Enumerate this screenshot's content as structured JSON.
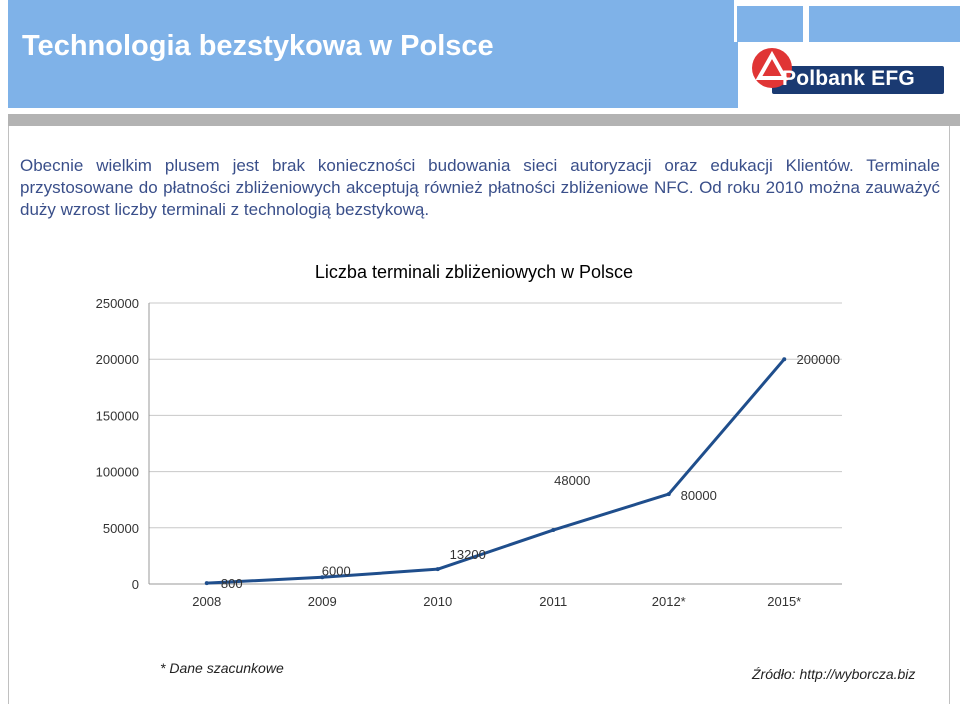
{
  "header": {
    "title": "Technologia bezstykowa w Polsce",
    "logo_text": "Polbank EFG",
    "band_color": "#7fb2e8",
    "logo_color": "#1a3a72",
    "logo_accent": "#e03535"
  },
  "intro": {
    "text": "Obecnie wielkim plusem jest brak konieczności budowania sieci autoryzacji oraz edukacji Klientów. Terminale przystosowane do płatności zbliżeniowych akceptują również płatności zbliżeniowe NFC. Od roku 2010 można zauważyć duży wzrost liczby terminali z technologią bezstykową."
  },
  "chart_data": {
    "type": "line",
    "title": "Liczba terminali zbliżeniowych w Polsce",
    "categories": [
      "2008",
      "2009",
      "2010",
      "2011",
      "2012*",
      "2015*"
    ],
    "series": [
      {
        "values": [
          800,
          6000,
          13200,
          48000,
          80000,
          200000
        ],
        "color": "#1f4e8c"
      }
    ],
    "data_labels": [
      "800",
      "6000",
      "13200",
      "48000",
      "80000",
      "200000"
    ],
    "y_ticks": [
      "0",
      "50000",
      "100000",
      "150000",
      "200000",
      "250000"
    ],
    "ylim": [
      0,
      250000
    ],
    "grid": true,
    "legend": "none"
  },
  "footnote": "* Dane szacunkowe",
  "source": "Źródło: http://wyborcza.biz"
}
